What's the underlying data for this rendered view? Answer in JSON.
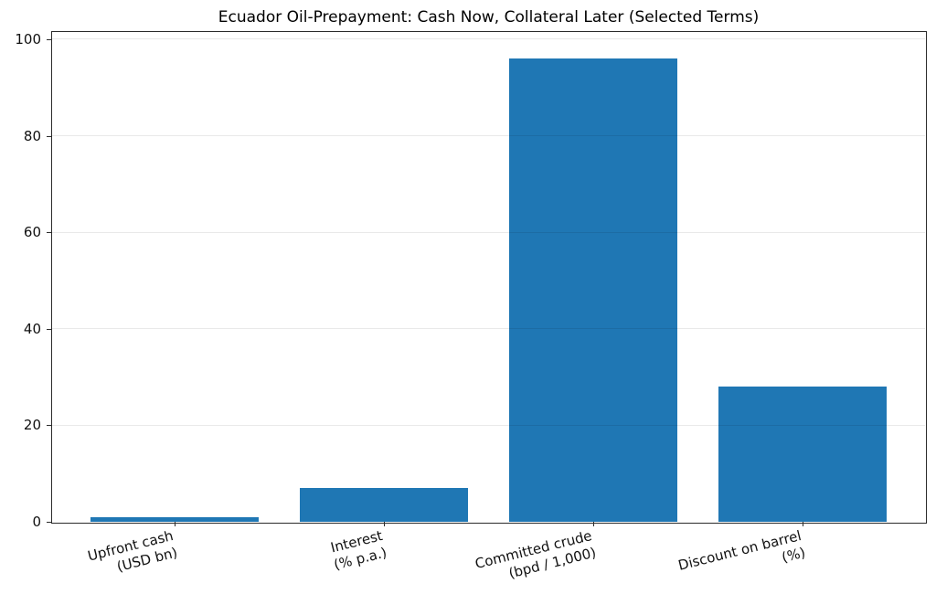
{
  "chart_data": {
    "type": "bar",
    "title": "Ecuador Oil-Prepayment: Cash Now, Collateral Later (Selected Terms)",
    "categories": [
      "Upfront cash\n(USD bn)",
      "Interest\n(% p.a.)",
      "Committed crude\n(bpd / 1,000)",
      "Discount on barrel\n(%)"
    ],
    "values": [
      1,
      7,
      96,
      28
    ],
    "xlabel": "",
    "ylabel": "",
    "ylim": [
      0,
      101.5
    ],
    "yticks": [
      0,
      20,
      40,
      60,
      80,
      100
    ],
    "grid": "horizontal-light",
    "grid_above_bars": true,
    "legend": "none",
    "bar_color": "#1f77b4",
    "axis_color": "#2b2b2b",
    "background": "#ffffff"
  }
}
